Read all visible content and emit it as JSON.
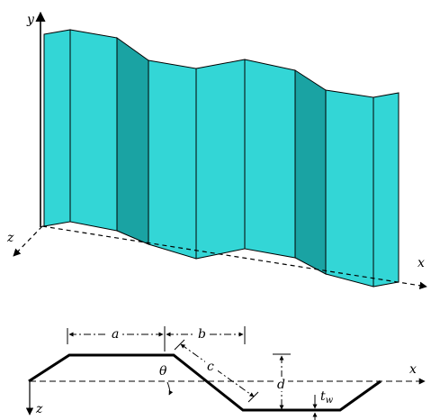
{
  "diagram": {
    "panel_colors": {
      "light": "#33D6D6",
      "dark": "#1AA3A3",
      "edge": "#000000"
    },
    "axes_3d": {
      "y_label": "y",
      "z_label": "z",
      "x_label": "x"
    },
    "cross_section": {
      "x_label": "x",
      "z_label": "z",
      "dim_a": "a",
      "dim_b": "b",
      "dim_c": "c",
      "dim_d": "d",
      "angle_label": "θ",
      "thickness_main": "t",
      "thickness_sub": "w"
    }
  }
}
